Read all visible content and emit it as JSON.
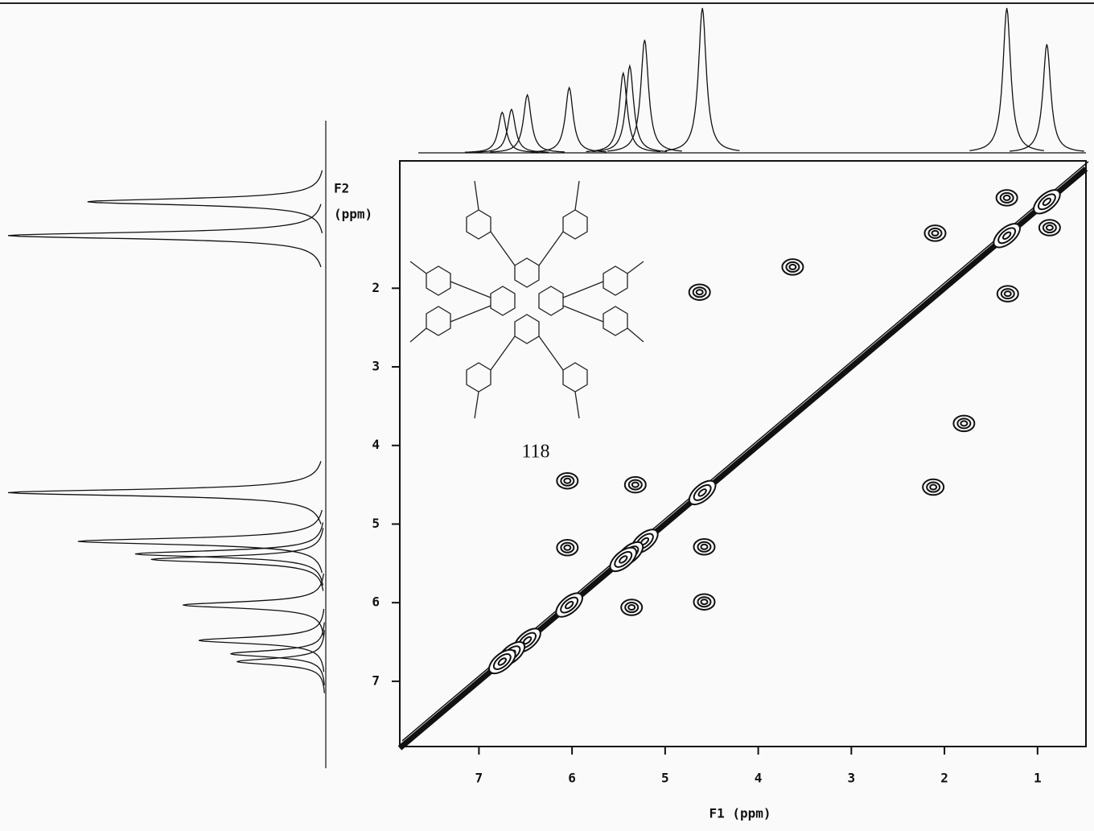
{
  "chart_data": {
    "type": "cosy",
    "x_label": "F1 (ppm)",
    "y_label_top": "F2",
    "y_label_bottom": "(ppm)",
    "compound_label": "118",
    "xlim": [
      7.85,
      0.48
    ],
    "ylim": [
      0.38,
      7.83
    ],
    "xticks": [
      7,
      6,
      5,
      4,
      3,
      2,
      1
    ],
    "yticks": [
      2,
      3,
      4,
      5,
      6,
      7
    ],
    "projection": {
      "ppm": [
        0.9,
        1.33,
        4.6,
        5.22,
        5.38,
        5.45,
        6.03,
        6.48,
        6.65,
        6.75
      ],
      "height": [
        75,
        100,
        100,
        78,
        60,
        55,
        45,
        40,
        30,
        28
      ]
    },
    "cross_peaks": {
      "f1": [
        1.33,
        0.87,
        2.1,
        1.32,
        4.63,
        3.63,
        1.79,
        6.05,
        5.32,
        6.05,
        5.36,
        4.58,
        4.58,
        2.12
      ],
      "f2": [
        0.85,
        1.23,
        1.3,
        2.07,
        2.05,
        1.73,
        3.72,
        4.45,
        4.5,
        5.3,
        6.06,
        5.29,
        5.99,
        4.53
      ]
    },
    "color": "#111111"
  }
}
